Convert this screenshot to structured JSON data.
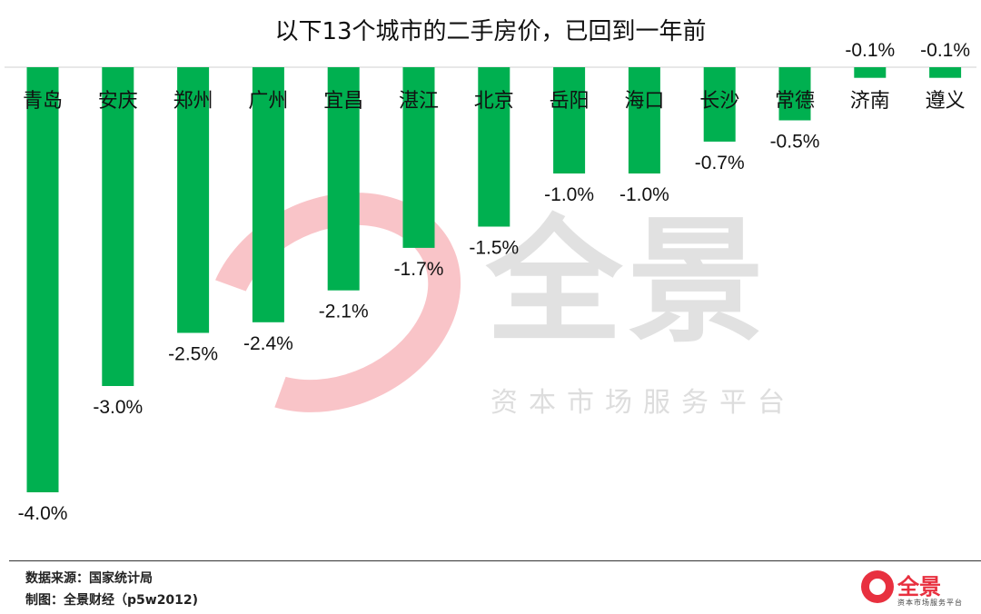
{
  "chart_data": {
    "type": "bar",
    "title": "以下13个城市的二手房价，已回到一年前",
    "categories": [
      "青岛",
      "安庆",
      "郑州",
      "广州",
      "宜昌",
      "湛江",
      "北京",
      "岳阳",
      "海口",
      "长沙",
      "常德",
      "济南",
      "遵义"
    ],
    "values": [
      -4.0,
      -3.0,
      -2.5,
      -2.4,
      -2.1,
      -1.7,
      -1.5,
      -1.0,
      -1.0,
      -0.7,
      -0.5,
      -0.1,
      -0.1
    ],
    "data_labels": [
      "-4.0%",
      "-3.0%",
      "-2.5%",
      "-2.4%",
      "-2.1%",
      "-1.7%",
      "-1.5%",
      "-1.0%",
      "-1.0%",
      "-0.7%",
      "-0.5%",
      "-0.1%",
      "-0.1%"
    ],
    "unit": "%",
    "xlabel": "",
    "ylabel": "",
    "ylim": [
      -4.0,
      0
    ],
    "grid": false,
    "bar_color": "#00b050"
  },
  "watermark": {
    "brand": "全景",
    "slogan": "资本市场服务平台"
  },
  "footer": {
    "source": "数据来源：国家统计局",
    "credit": "制图：全景财经（p5w2012)"
  },
  "logo": {
    "brand": "全景",
    "slogan": "资本市场服务平台",
    "color": "#e8303f"
  }
}
